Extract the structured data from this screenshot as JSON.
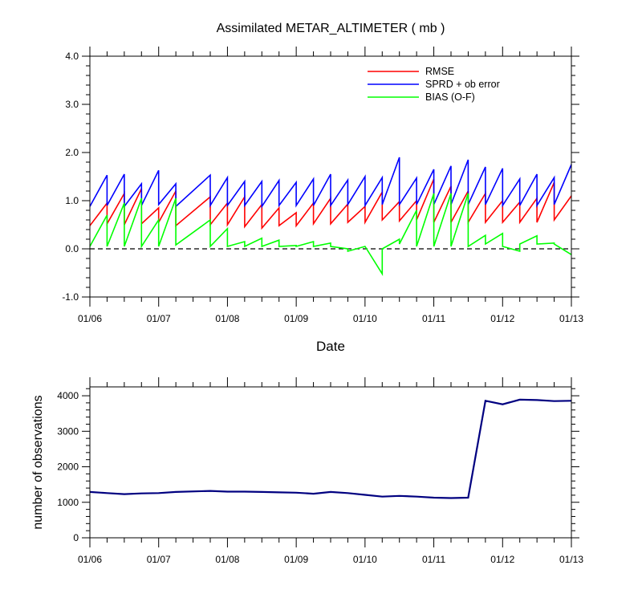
{
  "chart_data": [
    {
      "type": "line",
      "title": "Assimilated METAR_ALTIMETER ( mb )",
      "xlabel": "Date",
      "ylabel": "",
      "xlim": [
        "01/06",
        "01/13"
      ],
      "ylim": [
        -1.0,
        4.0
      ],
      "x_ticks": [
        "01/06",
        "01/07",
        "01/08",
        "01/09",
        "01/10",
        "01/11",
        "01/12",
        "01/13"
      ],
      "y_ticks": [
        "-1.0",
        "0.0",
        "1.0",
        "2.0",
        "3.0",
        "4.0"
      ],
      "legend_position": "top-right",
      "zero_line": "dashed",
      "series": [
        {
          "name": "RMSE",
          "color": "#ff0000",
          "segments": [
            [
              [
                "01/06 00:00",
                0.48
              ],
              [
                "01/06 06:00",
                0.95
              ]
            ],
            [
              [
                "01/06 06:00",
                0.52
              ],
              [
                "01/06 12:00",
                1.15
              ]
            ],
            [
              [
                "01/06 12:00",
                0.5
              ],
              [
                "01/06 18:00",
                1.25
              ]
            ],
            [
              [
                "01/06 18:00",
                0.52
              ],
              [
                "01/07 00:00",
                0.85
              ]
            ],
            [
              [
                "01/07 00:00",
                0.55
              ],
              [
                "01/07 06:00",
                1.2
              ]
            ],
            [
              [
                "01/07 06:00",
                0.48
              ],
              [
                "01/07 18:00",
                1.08
              ]
            ],
            [
              [
                "01/07 18:00",
                0.5
              ],
              [
                "01/08 00:00",
                0.95
              ]
            ],
            [
              [
                "01/08 00:00",
                0.5
              ],
              [
                "01/08 06:00",
                1.08
              ]
            ],
            [
              [
                "01/08 06:00",
                0.46
              ],
              [
                "01/08 12:00",
                0.92
              ]
            ],
            [
              [
                "01/08 12:00",
                0.43
              ],
              [
                "01/08 18:00",
                0.85
              ]
            ],
            [
              [
                "01/08 18:00",
                0.48
              ],
              [
                "01/09 00:00",
                0.75
              ]
            ],
            [
              [
                "01/09 00:00",
                0.48
              ],
              [
                "01/09 06:00",
                0.95
              ]
            ],
            [
              [
                "01/09 06:00",
                0.52
              ],
              [
                "01/09 12:00",
                1.05
              ]
            ],
            [
              [
                "01/09 12:00",
                0.52
              ],
              [
                "01/09 18:00",
                0.93
              ]
            ],
            [
              [
                "01/09 18:00",
                0.55
              ],
              [
                "01/10 00:00",
                0.88
              ]
            ],
            [
              [
                "01/10 00:00",
                0.55
              ],
              [
                "01/10 06:00",
                1.18
              ]
            ],
            [
              [
                "01/10 06:00",
                0.6
              ],
              [
                "01/10 12:00",
                0.98
              ]
            ],
            [
              [
                "01/10 12:00",
                0.58
              ],
              [
                "01/10 18:00",
                1.0
              ]
            ],
            [
              [
                "01/10 18:00",
                0.6
              ],
              [
                "01/11 00:00",
                1.45
              ]
            ],
            [
              [
                "01/11 00:00",
                0.55
              ],
              [
                "01/11 06:00",
                1.3
              ]
            ],
            [
              [
                "01/11 06:00",
                0.55
              ],
              [
                "01/11 12:00",
                1.2
              ]
            ],
            [
              [
                "01/11 12:00",
                0.55
              ],
              [
                "01/11 18:00",
                1.15
              ]
            ],
            [
              [
                "01/11 18:00",
                0.55
              ],
              [
                "01/12 00:00",
                1.0
              ]
            ],
            [
              [
                "01/12 00:00",
                0.55
              ],
              [
                "01/12 06:00",
                0.97
              ]
            ],
            [
              [
                "01/12 06:00",
                0.55
              ],
              [
                "01/12 12:00",
                1.05
              ]
            ],
            [
              [
                "01/12 12:00",
                0.55
              ],
              [
                "01/12 18:00",
                1.38
              ]
            ],
            [
              [
                "01/12 18:00",
                0.6
              ],
              [
                "01/13 00:00",
                1.1
              ]
            ]
          ]
        },
        {
          "name": "SPRD + ob error",
          "color": "#0000ff",
          "segments": [
            [
              [
                "01/06 00:00",
                0.88
              ],
              [
                "01/06 06:00",
                1.53
              ]
            ],
            [
              [
                "01/06 06:00",
                0.9
              ],
              [
                "01/06 12:00",
                1.55
              ]
            ],
            [
              [
                "01/06 12:00",
                0.88
              ],
              [
                "01/06 18:00",
                1.35
              ]
            ],
            [
              [
                "01/06 18:00",
                0.9
              ],
              [
                "01/07 00:00",
                1.63
              ]
            ],
            [
              [
                "01/07 00:00",
                0.92
              ],
              [
                "01/07 06:00",
                1.35
              ]
            ],
            [
              [
                "01/07 06:00",
                0.88
              ],
              [
                "01/07 18:00",
                1.53
              ]
            ],
            [
              [
                "01/07 18:00",
                0.9
              ],
              [
                "01/08 00:00",
                1.48
              ]
            ],
            [
              [
                "01/08 00:00",
                0.9
              ],
              [
                "01/08 06:00",
                1.4
              ]
            ],
            [
              [
                "01/08 06:00",
                0.9
              ],
              [
                "01/08 12:00",
                1.4
              ]
            ],
            [
              [
                "01/08 12:00",
                0.88
              ],
              [
                "01/08 18:00",
                1.42
              ]
            ],
            [
              [
                "01/08 18:00",
                0.9
              ],
              [
                "01/09 00:00",
                1.38
              ]
            ],
            [
              [
                "01/09 00:00",
                0.9
              ],
              [
                "01/09 06:00",
                1.45
              ]
            ],
            [
              [
                "01/09 06:00",
                0.9
              ],
              [
                "01/09 12:00",
                1.55
              ]
            ],
            [
              [
                "01/09 12:00",
                0.9
              ],
              [
                "01/09 18:00",
                1.43
              ]
            ],
            [
              [
                "01/09 18:00",
                0.92
              ],
              [
                "01/10 00:00",
                1.5
              ]
            ],
            [
              [
                "01/10 00:00",
                0.9
              ],
              [
                "01/10 06:00",
                1.48
              ]
            ],
            [
              [
                "01/10 06:00",
                0.92
              ],
              [
                "01/10 12:00",
                1.9
              ]
            ],
            [
              [
                "01/10 12:00",
                0.92
              ],
              [
                "01/10 18:00",
                1.47
              ]
            ],
            [
              [
                "01/10 18:00",
                0.92
              ],
              [
                "01/11 00:00",
                1.65
              ]
            ],
            [
              [
                "01/11 00:00",
                0.92
              ],
              [
                "01/11 06:00",
                1.72
              ]
            ],
            [
              [
                "01/11 06:00",
                0.92
              ],
              [
                "01/11 12:00",
                1.85
              ]
            ],
            [
              [
                "01/11 12:00",
                0.92
              ],
              [
                "01/11 18:00",
                1.7
              ]
            ],
            [
              [
                "01/11 18:00",
                0.92
              ],
              [
                "01/12 00:00",
                1.67
              ]
            ],
            [
              [
                "01/12 00:00",
                0.9
              ],
              [
                "01/12 06:00",
                1.45
              ]
            ],
            [
              [
                "01/12 06:00",
                0.9
              ],
              [
                "01/12 12:00",
                1.55
              ]
            ],
            [
              [
                "01/12 12:00",
                0.9
              ],
              [
                "01/12 18:00",
                1.48
              ]
            ],
            [
              [
                "01/12 18:00",
                0.92
              ],
              [
                "01/13 00:00",
                1.75
              ]
            ]
          ]
        },
        {
          "name": "BIAS (O-F)",
          "color": "#00ff00",
          "segments": [
            [
              [
                "01/06 00:00",
                0.05
              ],
              [
                "01/06 06:00",
                0.7
              ]
            ],
            [
              [
                "01/06 06:00",
                0.05
              ],
              [
                "01/06 12:00",
                0.95
              ]
            ],
            [
              [
                "01/06 12:00",
                0.05
              ],
              [
                "01/06 18:00",
                1.05
              ]
            ],
            [
              [
                "01/06 18:00",
                0.05
              ],
              [
                "01/07 00:00",
                0.6
              ]
            ],
            [
              [
                "01/07 00:00",
                0.05
              ],
              [
                "01/07 06:00",
                1.05
              ]
            ],
            [
              [
                "01/07 06:00",
                0.08
              ],
              [
                "01/07 18:00",
                0.6
              ]
            ],
            [
              [
                "01/07 18:00",
                0.05
              ],
              [
                "01/08 00:00",
                0.42
              ]
            ],
            [
              [
                "01/08 00:00",
                0.05
              ],
              [
                "01/08 06:00",
                0.15
              ]
            ],
            [
              [
                "01/08 06:00",
                0.05
              ],
              [
                "01/08 12:00",
                0.22
              ]
            ],
            [
              [
                "01/08 12:00",
                0.05
              ],
              [
                "01/08 18:00",
                0.18
              ]
            ],
            [
              [
                "01/08 18:00",
                0.05
              ],
              [
                "01/09 00:00",
                0.07
              ]
            ],
            [
              [
                "01/09 00:00",
                0.05
              ],
              [
                "01/09 06:00",
                0.15
              ]
            ],
            [
              [
                "01/09 06:00",
                0.05
              ],
              [
                "01/09 12:00",
                0.12
              ]
            ],
            [
              [
                "01/09 12:00",
                0.05
              ],
              [
                "01/09 18:00",
                0.0
              ]
            ],
            [
              [
                "01/09 18:00",
                -0.05
              ],
              [
                "01/10 00:00",
                0.05
              ]
            ],
            [
              [
                "01/10 00:00",
                0.05
              ],
              [
                "01/10 06:00",
                -0.52
              ]
            ],
            [
              [
                "01/10 06:00",
                0.0
              ],
              [
                "01/10 12:00",
                0.2
              ]
            ],
            [
              [
                "01/10 12:00",
                0.1
              ],
              [
                "01/10 18:00",
                0.8
              ]
            ],
            [
              [
                "01/10 18:00",
                0.05
              ],
              [
                "01/11 00:00",
                1.15
              ]
            ],
            [
              [
                "01/11 00:00",
                0.05
              ],
              [
                "01/11 06:00",
                1.15
              ]
            ],
            [
              [
                "01/11 06:00",
                0.05
              ],
              [
                "01/11 12:00",
                1.15
              ]
            ],
            [
              [
                "01/11 12:00",
                0.05
              ],
              [
                "01/11 18:00",
                0.28
              ]
            ],
            [
              [
                "01/11 18:00",
                0.1
              ],
              [
                "01/12 00:00",
                0.32
              ]
            ],
            [
              [
                "01/12 00:00",
                0.05
              ],
              [
                "01/12 06:00",
                -0.05
              ]
            ],
            [
              [
                "01/12 06:00",
                0.1
              ],
              [
                "01/12 12:00",
                0.27
              ]
            ],
            [
              [
                "01/12 12:00",
                0.1
              ],
              [
                "01/12 18:00",
                0.12
              ]
            ],
            [
              [
                "01/12 18:00",
                0.1
              ],
              [
                "01/13 00:00",
                -0.12
              ]
            ]
          ]
        }
      ]
    },
    {
      "type": "line",
      "title": "",
      "xlabel": "",
      "ylabel": "number of observations",
      "xlim": [
        "01/06",
        "01/13"
      ],
      "ylim": [
        0,
        4250
      ],
      "x_ticks": [
        "01/06",
        "01/07",
        "01/08",
        "01/09",
        "01/10",
        "01/11",
        "01/12",
        "01/13"
      ],
      "y_ticks": [
        "0",
        "1000",
        "2000",
        "3000",
        "4000"
      ],
      "series": [
        {
          "color": "#000080",
          "x": [
            "01/06 00:00",
            "01/06 06:00",
            "01/06 12:00",
            "01/06 18:00",
            "01/07 00:00",
            "01/07 06:00",
            "01/07 18:00",
            "01/08 00:00",
            "01/08 06:00",
            "01/08 12:00",
            "01/08 18:00",
            "01/09 00:00",
            "01/09 06:00",
            "01/09 12:00",
            "01/09 18:00",
            "01/10 00:00",
            "01/10 06:00",
            "01/10 12:00",
            "01/10 18:00",
            "01/11 00:00",
            "01/11 06:00",
            "01/11 12:00",
            "01/11 18:00",
            "01/12 00:00",
            "01/12 06:00",
            "01/12 12:00",
            "01/12 18:00",
            "01/13 00:00"
          ],
          "values": [
            1290,
            1260,
            1230,
            1250,
            1260,
            1290,
            1320,
            1300,
            1300,
            1290,
            1280,
            1270,
            1240,
            1290,
            1260,
            1210,
            1160,
            1180,
            1160,
            1130,
            1120,
            1130,
            3860,
            3760,
            3890,
            3880,
            3850,
            3860
          ]
        }
      ]
    }
  ]
}
